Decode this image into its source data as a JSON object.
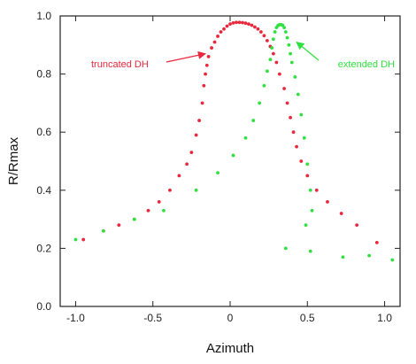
{
  "chart_data": {
    "type": "scatter",
    "xlabel": "Azimuth",
    "ylabel": "R/Rmax",
    "xlim": [
      -1.1,
      1.1
    ],
    "ylim": [
      0.0,
      1.0
    ],
    "x_ticks": [
      -1.0,
      -0.5,
      0.0,
      0.5,
      1.0
    ],
    "x_tick_labels": [
      "-1.0",
      "-0.5",
      "0",
      "0.5",
      "1.0"
    ],
    "y_ticks": [
      0.0,
      0.2,
      0.4,
      0.6,
      0.8,
      1.0
    ],
    "y_tick_labels": [
      "0.0",
      "0.2",
      "0.4",
      "0.6",
      "0.8",
      "1.0"
    ],
    "grid": false,
    "series": [
      {
        "name": "truncated DH",
        "color": "#e8283c",
        "points": [
          [
            -0.95,
            0.23
          ],
          [
            -0.82,
            0.26
          ],
          [
            -0.72,
            0.28
          ],
          [
            -0.62,
            0.3
          ],
          [
            -0.53,
            0.33
          ],
          [
            -0.46,
            0.36
          ],
          [
            -0.39,
            0.4
          ],
          [
            -0.33,
            0.45
          ],
          [
            -0.28,
            0.49
          ],
          [
            -0.25,
            0.53
          ],
          [
            -0.22,
            0.59
          ],
          [
            -0.2,
            0.64
          ],
          [
            -0.18,
            0.7
          ],
          [
            -0.17,
            0.76
          ],
          [
            -0.16,
            0.8
          ],
          [
            -0.15,
            0.83
          ],
          [
            -0.14,
            0.86
          ],
          [
            -0.12,
            0.89
          ],
          [
            -0.1,
            0.91
          ],
          [
            -0.08,
            0.93
          ],
          [
            -0.06,
            0.945
          ],
          [
            -0.04,
            0.955
          ],
          [
            -0.02,
            0.965
          ],
          [
            0.0,
            0.972
          ],
          [
            0.02,
            0.976
          ],
          [
            0.04,
            0.978
          ],
          [
            0.06,
            0.978
          ],
          [
            0.08,
            0.977
          ],
          [
            0.1,
            0.975
          ],
          [
            0.12,
            0.972
          ],
          [
            0.14,
            0.968
          ],
          [
            0.16,
            0.962
          ],
          [
            0.18,
            0.955
          ],
          [
            0.2,
            0.945
          ],
          [
            0.22,
            0.932
          ],
          [
            0.24,
            0.915
          ],
          [
            0.26,
            0.895
          ],
          [
            0.28,
            0.87
          ],
          [
            0.3,
            0.84
          ],
          [
            0.32,
            0.8
          ],
          [
            0.35,
            0.75
          ],
          [
            0.37,
            0.7
          ],
          [
            0.39,
            0.65
          ],
          [
            0.41,
            0.6
          ],
          [
            0.43,
            0.55
          ],
          [
            0.46,
            0.5
          ],
          [
            0.5,
            0.45
          ],
          [
            0.56,
            0.4
          ],
          [
            0.63,
            0.36
          ],
          [
            0.72,
            0.32
          ],
          [
            0.82,
            0.28
          ],
          [
            0.95,
            0.22
          ]
        ]
      },
      {
        "name": "extended DH",
        "color": "#30e040",
        "points": [
          [
            -1.0,
            0.23
          ],
          [
            -0.82,
            0.26
          ],
          [
            -0.62,
            0.3
          ],
          [
            -0.43,
            0.33
          ],
          [
            -0.22,
            0.4
          ],
          [
            -0.08,
            0.46
          ],
          [
            0.02,
            0.52
          ],
          [
            0.1,
            0.58
          ],
          [
            0.15,
            0.64
          ],
          [
            0.19,
            0.7
          ],
          [
            0.22,
            0.76
          ],
          [
            0.24,
            0.81
          ],
          [
            0.26,
            0.85
          ],
          [
            0.27,
            0.89
          ],
          [
            0.28,
            0.92
          ],
          [
            0.29,
            0.945
          ],
          [
            0.3,
            0.96
          ],
          [
            0.31,
            0.967
          ],
          [
            0.32,
            0.97
          ],
          [
            0.33,
            0.97
          ],
          [
            0.34,
            0.968
          ],
          [
            0.35,
            0.96
          ],
          [
            0.36,
            0.945
          ],
          [
            0.37,
            0.925
          ],
          [
            0.38,
            0.9
          ],
          [
            0.39,
            0.87
          ],
          [
            0.4,
            0.84
          ],
          [
            0.42,
            0.79
          ],
          [
            0.44,
            0.73
          ],
          [
            0.46,
            0.66
          ],
          [
            0.48,
            0.58
          ],
          [
            0.5,
            0.49
          ],
          [
            0.52,
            0.4
          ],
          [
            0.53,
            0.33
          ],
          [
            0.49,
            0.28
          ],
          [
            0.36,
            0.2
          ],
          [
            0.52,
            0.19
          ],
          [
            0.73,
            0.17
          ],
          [
            0.9,
            0.175
          ],
          [
            1.05,
            0.16
          ]
        ]
      }
    ],
    "annotations": [
      {
        "text": "truncated DH",
        "color": "#e8283c",
        "target": [
          -0.16,
          0.87
        ]
      },
      {
        "text": "extended DH",
        "color": "#30e040",
        "target": [
          0.43,
          0.91
        ]
      }
    ]
  }
}
